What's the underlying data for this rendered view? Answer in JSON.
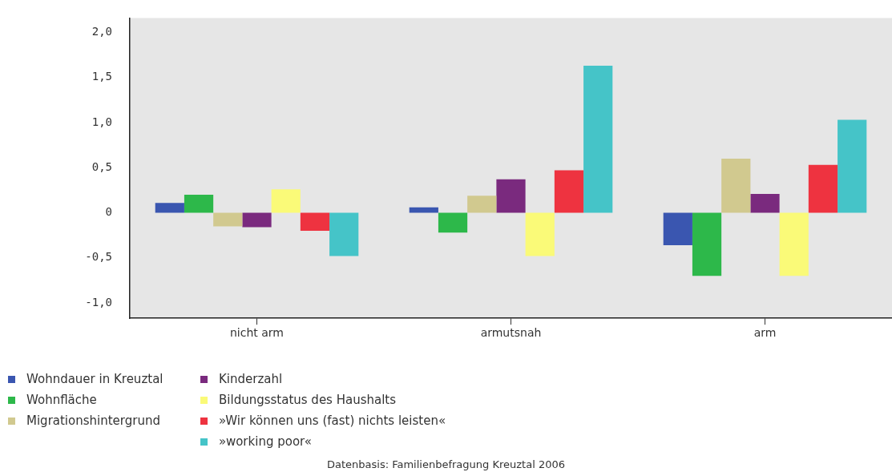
{
  "chart_data": {
    "type": "bar",
    "categories": [
      "nicht arm",
      "armutsnah",
      "arm"
    ],
    "series": [
      {
        "name": "Wohndauer in Kreuztal",
        "color": "#3a56b0",
        "values": [
          0.11,
          0.06,
          -0.36
        ]
      },
      {
        "name": "Wohnfläche",
        "color": "#2db84a",
        "values": [
          0.2,
          -0.22,
          -0.7
        ]
      },
      {
        "name": "Migrationshintergrund",
        "color": "#d1c98f",
        "values": [
          -0.15,
          0.19,
          0.6
        ]
      },
      {
        "name": "Kinderzahl",
        "color": "#7a2a7e",
        "values": [
          -0.16,
          0.37,
          0.21
        ]
      },
      {
        "name": "Bildungsstatus des Haushalts",
        "color": "#fafa78",
        "values": [
          0.26,
          -0.48,
          -0.7
        ]
      },
      {
        "name": "»Wir können uns (fast) nichts leisten«",
        "color": "#ee3340",
        "values": [
          -0.2,
          0.47,
          0.53
        ]
      },
      {
        "name": "»working poor«",
        "color": "#45c4c8",
        "values": [
          -0.48,
          1.63,
          1.03
        ]
      }
    ],
    "ylim": [
      -1.17,
      2.16
    ],
    "yticks": [
      {
        "value": -1,
        "label": "-1,0"
      },
      {
        "value": -0.5,
        "label": "-0,5"
      },
      {
        "value": 0,
        "label": "0"
      },
      {
        "value": 0.5,
        "label": "0,5"
      },
      {
        "value": 1,
        "label": "1,0"
      },
      {
        "value": 1.5,
        "label": "1,5"
      },
      {
        "value": 2,
        "label": "2,0"
      }
    ],
    "grid": false,
    "legend": "bottom left",
    "annotations": [
      "Datenbasis: Familienbefragung Kreuztal 2006"
    ]
  }
}
